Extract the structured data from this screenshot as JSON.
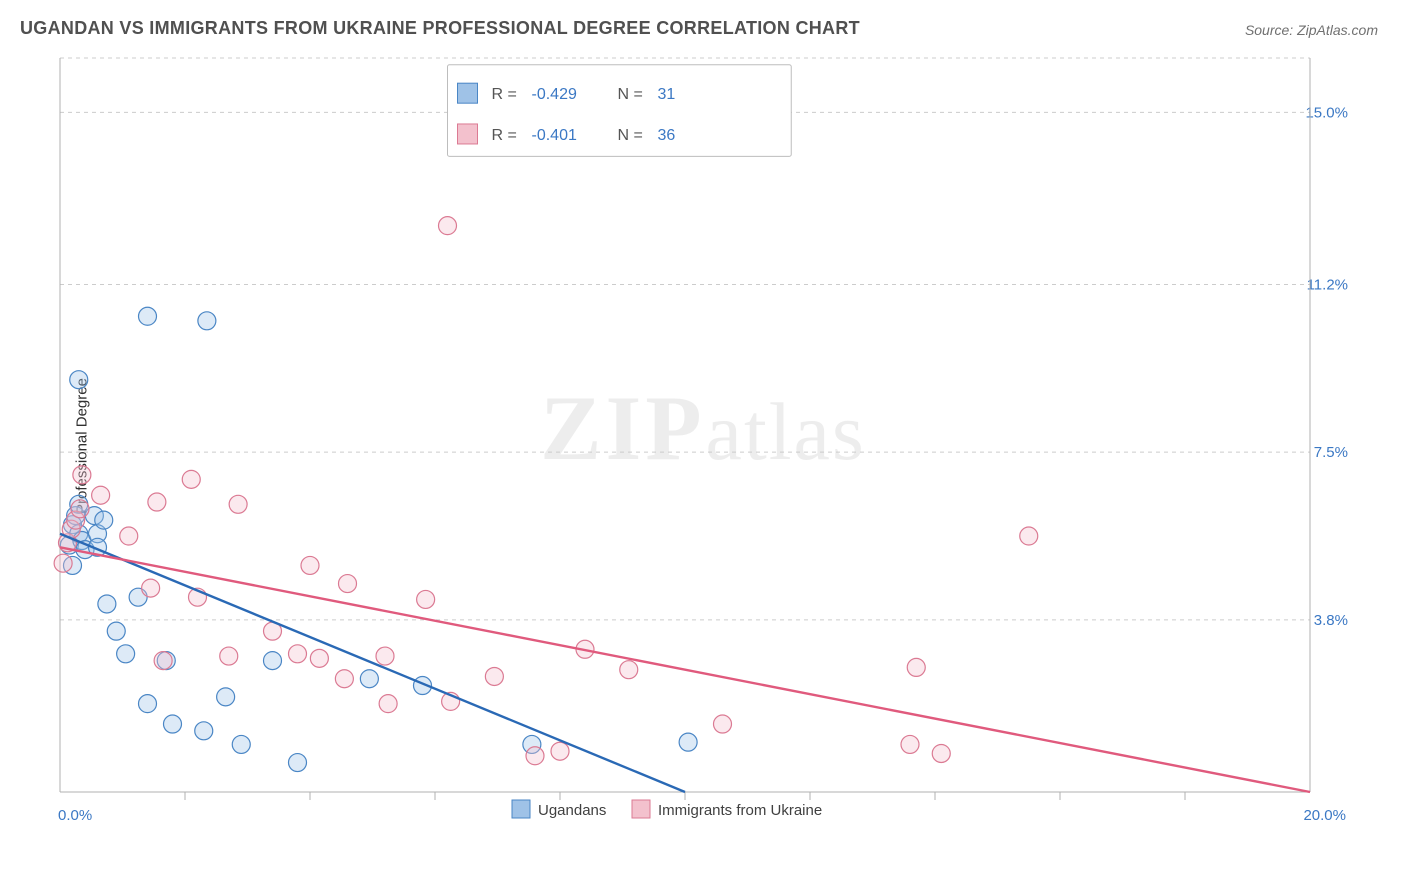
{
  "title": "UGANDAN VS IMMIGRANTS FROM UKRAINE PROFESSIONAL DEGREE CORRELATION CHART",
  "source": "Source: ZipAtlas.com",
  "ylabel": "Professional Degree",
  "watermark_a": "ZIP",
  "watermark_b": "atlas",
  "chart": {
    "type": "scatter",
    "background_color": "#ffffff",
    "grid_color": "#cccccc",
    "axis_color": "#b0b0b0",
    "tick_label_color": "#3b78c4",
    "xlim": [
      0.0,
      20.0
    ],
    "ylim": [
      0.0,
      16.2
    ],
    "x_axis_labels": [
      {
        "val": 0.0,
        "text": "0.0%"
      },
      {
        "val": 20.0,
        "text": "20.0%"
      }
    ],
    "x_minor_ticks": [
      2,
      4,
      6,
      8,
      10,
      12,
      14,
      16,
      18
    ],
    "y_gridlines": [
      {
        "val": 3.8,
        "text": "3.8%"
      },
      {
        "val": 7.5,
        "text": "7.5%"
      },
      {
        "val": 11.2,
        "text": "11.2%"
      },
      {
        "val": 15.0,
        "text": "15.0%"
      }
    ],
    "marker_radius": 9,
    "series": [
      {
        "name": "Ugandans",
        "fill": "#9fc2e7",
        "stroke": "#4a86c5",
        "trend_stroke": "#2a69b5",
        "R": "-0.429",
        "N": "31",
        "trend": {
          "x1": 0.0,
          "y1": 5.7,
          "x2": 10.0,
          "y2": 0.0
        },
        "points": [
          [
            0.15,
            5.45
          ],
          [
            0.2,
            5.9
          ],
          [
            0.25,
            6.1
          ],
          [
            0.3,
            6.35
          ],
          [
            0.3,
            5.7
          ],
          [
            0.35,
            5.55
          ],
          [
            0.4,
            5.35
          ],
          [
            0.55,
            6.1
          ],
          [
            0.6,
            5.7
          ],
          [
            0.6,
            5.4
          ],
          [
            0.7,
            6.0
          ],
          [
            0.2,
            5.0
          ],
          [
            0.3,
            9.1
          ],
          [
            1.4,
            10.5
          ],
          [
            2.35,
            10.4
          ],
          [
            0.75,
            4.15
          ],
          [
            0.9,
            3.55
          ],
          [
            1.05,
            3.05
          ],
          [
            1.25,
            4.3
          ],
          [
            1.7,
            2.9
          ],
          [
            1.4,
            1.95
          ],
          [
            1.8,
            1.5
          ],
          [
            2.3,
            1.35
          ],
          [
            2.65,
            2.1
          ],
          [
            2.9,
            1.05
          ],
          [
            3.4,
            2.9
          ],
          [
            3.8,
            0.65
          ],
          [
            4.95,
            2.5
          ],
          [
            5.8,
            2.35
          ],
          [
            7.55,
            1.05
          ],
          [
            10.05,
            1.1
          ]
        ]
      },
      {
        "name": "Immigrants from Ukraine",
        "fill": "#f3c1cd",
        "stroke": "#db7a93",
        "trend_stroke": "#e05a7d",
        "R": "-0.401",
        "N": "36",
        "trend": {
          "x1": 0.0,
          "y1": 5.4,
          "x2": 20.0,
          "y2": 0.0
        },
        "points": [
          [
            0.05,
            5.05
          ],
          [
            0.12,
            5.5
          ],
          [
            0.18,
            5.8
          ],
          [
            0.25,
            6.0
          ],
          [
            0.32,
            6.25
          ],
          [
            0.35,
            7.0
          ],
          [
            0.65,
            6.55
          ],
          [
            1.1,
            5.65
          ],
          [
            1.55,
            6.4
          ],
          [
            2.1,
            6.9
          ],
          [
            2.85,
            6.35
          ],
          [
            1.45,
            4.5
          ],
          [
            2.2,
            4.3
          ],
          [
            1.65,
            2.9
          ],
          [
            2.7,
            3.0
          ],
          [
            3.4,
            3.55
          ],
          [
            3.8,
            3.05
          ],
          [
            4.15,
            2.95
          ],
          [
            4.6,
            4.6
          ],
          [
            4.55,
            2.5
          ],
          [
            5.2,
            3.0
          ],
          [
            5.25,
            1.95
          ],
          [
            5.85,
            4.25
          ],
          [
            6.25,
            2.0
          ],
          [
            6.95,
            2.55
          ],
          [
            7.6,
            0.8
          ],
          [
            8.0,
            0.9
          ],
          [
            8.4,
            3.15
          ],
          [
            9.1,
            2.7
          ],
          [
            10.6,
            1.5
          ],
          [
            13.7,
            2.75
          ],
          [
            13.6,
            1.05
          ],
          [
            14.1,
            0.85
          ],
          [
            6.2,
            12.5
          ],
          [
            15.5,
            5.65
          ],
          [
            4.0,
            5.0
          ]
        ]
      }
    ],
    "stat_box": {
      "x": 6.2,
      "y_top": 16.05,
      "width_x": 5.5,
      "row_h": 0.9
    },
    "bottom_legend": {
      "square_size": 18
    }
  }
}
